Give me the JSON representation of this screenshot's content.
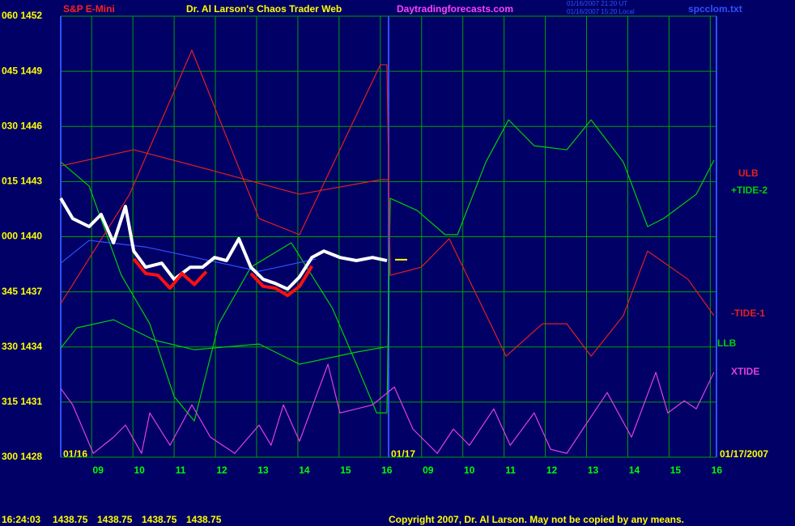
{
  "chart_data": {
    "type": "line",
    "title": "Dr. Al Larson's Chaos Trader Web",
    "instrument": "S&P E-Mini",
    "website": "Daytradingforecasts.com",
    "timestamps": [
      "01/16/2007 21:20 UT",
      "01/16/2007 15:20 Local"
    ],
    "file": "spcclom.txt",
    "dates": [
      "01/16",
      "01/17",
      "01/17/2007"
    ],
    "copyright": "Copyright 2007, Dr. Al Larson. May not be copied by any means.",
    "status": {
      "time": "16:24:03",
      "values": [
        1438.75,
        1438.75,
        1438.75,
        1438.75
      ]
    },
    "grid": true,
    "xlim": [
      0,
      15.9
    ],
    "ylim": [
      1428,
      1452
    ],
    "day_divider": 7.95,
    "yticks": [
      {
        "value": 1452,
        "label": "060 1452"
      },
      {
        "value": 1449,
        "label": "045 1449"
      },
      {
        "value": 1446,
        "label": "030 1446"
      },
      {
        "value": 1443,
        "label": "015 1443"
      },
      {
        "value": 1440,
        "label": "000 1440"
      },
      {
        "value": 1437,
        "label": "345 1437"
      },
      {
        "value": 1434,
        "label": "330 1434"
      },
      {
        "value": 1431,
        "label": "315 1431"
      },
      {
        "value": 1428,
        "label": "300 1428"
      }
    ],
    "xticks": [
      {
        "value": 0.75,
        "label": "09"
      },
      {
        "value": 1.75,
        "label": "10"
      },
      {
        "value": 2.75,
        "label": "11"
      },
      {
        "value": 3.75,
        "label": "12"
      },
      {
        "value": 4.75,
        "label": "13"
      },
      {
        "value": 5.75,
        "label": "14"
      },
      {
        "value": 6.75,
        "label": "15"
      },
      {
        "value": 7.75,
        "label": "16"
      },
      {
        "value": 8.75,
        "label": "09"
      },
      {
        "value": 9.75,
        "label": "10"
      },
      {
        "value": 10.75,
        "label": "11"
      },
      {
        "value": 11.75,
        "label": "12"
      },
      {
        "value": 12.75,
        "label": "13"
      },
      {
        "value": 13.75,
        "label": "14"
      },
      {
        "value": 14.75,
        "label": "15"
      },
      {
        "value": 15.75,
        "label": "16"
      }
    ],
    "last_price": 1438.75,
    "series": [
      {
        "name": "ULB",
        "color": "#e02020",
        "x": [
          0,
          1.77,
          3.63,
          5.79,
          7.75,
          7.95
        ],
        "values": [
          1443.85,
          1444.73,
          1443.63,
          1442.31,
          1443.1,
          1443.1
        ]
      },
      {
        "name": "+TIDE-2",
        "color": "#00d000",
        "x": [
          0,
          0.69,
          1.47,
          2.16,
          2.75,
          3.24,
          3.83,
          4.61,
          5.59,
          6.58,
          7.17,
          7.66,
          7.91,
          7.99,
          8.64,
          9.32,
          9.62,
          10.31,
          10.86,
          11.48,
          12.27,
          12.86,
          13.64,
          14.23,
          14.62,
          15.41,
          15.84
        ],
        "values": [
          1444.07,
          1442.75,
          1437.9,
          1435.26,
          1431.3,
          1429.97,
          1435.26,
          1438.34,
          1439.67,
          1436.14,
          1433.06,
          1430.41,
          1430.41,
          1442.09,
          1441.43,
          1440.11,
          1440.11,
          1444.07,
          1446.36,
          1444.95,
          1444.73,
          1446.36,
          1444.07,
          1440.55,
          1440.99,
          1442.31,
          1444.16
        ]
      },
      {
        "name": "-TIDE-1",
        "color": "#e02020",
        "x": [
          0,
          1.67,
          3.18,
          4.81,
          5.79,
          7.75,
          7.91,
          7.99,
          8.74,
          9.42,
          10.8,
          11.68,
          12.27,
          12.86,
          13.64,
          14.23,
          15.21,
          15.84
        ],
        "values": [
          1436.36,
          1442.31,
          1450.15,
          1440.99,
          1440.11,
          1449.36,
          1449.36,
          1437.9,
          1438.34,
          1439.89,
          1433.5,
          1435.26,
          1435.26,
          1433.5,
          1435.7,
          1439.22,
          1437.68,
          1435.7
        ]
      },
      {
        "name": "LLB",
        "color": "#00d000",
        "x": [
          0,
          0.39,
          1.28,
          2.26,
          3.24,
          4.81,
          5.79,
          7.17,
          7.95
        ],
        "values": [
          1433.94,
          1435.04,
          1435.48,
          1434.38,
          1433.85,
          1434.16,
          1433.06,
          1433.72,
          1434.03
        ]
      },
      {
        "name": "XTIDE",
        "color": "#e040e0",
        "x": [
          0,
          0.29,
          0.79,
          1.28,
          1.57,
          1.96,
          2.16,
          2.65,
          3.18,
          3.63,
          4.22,
          4.81,
          5.1,
          5.4,
          5.79,
          6.48,
          6.77,
          7.17,
          7.56,
          8.09,
          8.54,
          9.13,
          9.52,
          9.91,
          10.5,
          10.9,
          11.48,
          11.88,
          12.27,
          12.66,
          13.25,
          13.84,
          14.43,
          14.72,
          15.12,
          15.41,
          15.84
        ],
        "values": [
          1431.74,
          1430.85,
          1428.21,
          1429.09,
          1429.75,
          1428.21,
          1430.41,
          1428.65,
          1430.85,
          1429.09,
          1428.21,
          1429.75,
          1428.65,
          1430.85,
          1428.87,
          1433.06,
          1430.41,
          1430.63,
          1430.85,
          1431.82,
          1429.53,
          1428.21,
          1429.53,
          1428.65,
          1430.63,
          1428.65,
          1430.41,
          1428.43,
          1428.21,
          1429.53,
          1431.52,
          1429.09,
          1432.62,
          1430.41,
          1431.07,
          1430.63,
          1432.62
        ]
      },
      {
        "color": "#3050ff",
        "x": [
          0,
          0.69,
          2.06,
          3.44,
          4.81,
          6.18
        ],
        "values": [
          1438.56,
          1439.8,
          1439.44,
          1438.78,
          1438.12,
          1438.78
        ]
      },
      {
        "color": "#ffffff",
        "width": 4,
        "x": [
          0,
          0.29,
          0.69,
          0.98,
          1.28,
          1.57,
          1.77,
          2.06,
          2.45,
          2.75,
          3.14,
          3.44,
          3.73,
          4.02,
          4.32,
          4.61,
          4.91,
          5.2,
          5.5,
          5.79,
          6.09,
          6.38,
          6.77,
          7.17,
          7.56,
          7.91
        ],
        "values": [
          1442.09,
          1440.99,
          1440.55,
          1441.21,
          1439.67,
          1441.65,
          1439.22,
          1438.34,
          1438.56,
          1437.68,
          1438.34,
          1438.34,
          1438.87,
          1438.7,
          1439.89,
          1438.34,
          1437.68,
          1437.46,
          1437.15,
          1437.81,
          1438.87,
          1439.22,
          1438.87,
          1438.7,
          1438.87,
          1438.7
        ]
      },
      {
        "color": "#ff1010",
        "width": 4,
        "x": [
          1.77,
          2.06,
          2.36,
          2.65,
          2.94,
          3.24,
          3.53
        ],
        "values": [
          1438.8,
          1438.0,
          1437.9,
          1437.2,
          1438.0,
          1437.4,
          1438.1
        ]
      },
      {
        "color": "#ff1010",
        "width": 4,
        "x": [
          4.61,
          4.91,
          5.2,
          5.5,
          5.79,
          6.09
        ],
        "values": [
          1438.0,
          1437.3,
          1437.2,
          1436.8,
          1437.3,
          1438.4
        ]
      }
    ]
  }
}
